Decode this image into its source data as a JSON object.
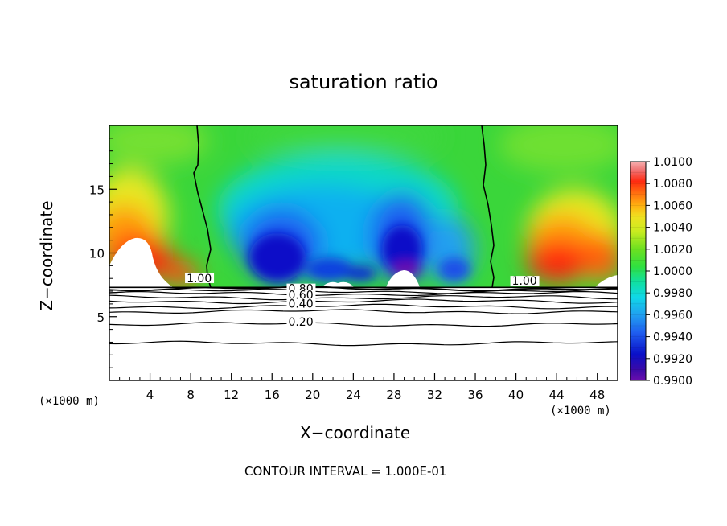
{
  "chart_data": {
    "type": "heatmap",
    "title": "saturation ratio",
    "xlabel": "X−coordinate",
    "ylabel": "Z−coordinate",
    "x_unit_left": "(×1000 m)",
    "x_unit_right": "(×1000 m)",
    "xlim": [
      0,
      50
    ],
    "ylim": [
      0,
      20
    ],
    "x_ticks": [
      4,
      8,
      12,
      16,
      20,
      24,
      28,
      32,
      36,
      40,
      44,
      48
    ],
    "y_ticks": [
      5,
      10,
      15
    ],
    "colorbar": {
      "min": 0.99,
      "max": 1.01,
      "labels": [
        "1.0100",
        "1.0080",
        "1.0060",
        "1.0040",
        "1.0020",
        "1.0000",
        "0.9980",
        "0.9960",
        "0.9940",
        "0.9920",
        "0.9900"
      ],
      "colors": {
        "low_purple": "#6a0dad",
        "blue_dark": "#0a10c8",
        "blue": "#1f5ff0",
        "cyan": "#10d8e8",
        "teal": "#10e0a0",
        "green": "#2cd62c",
        "yellow": "#eaea20",
        "orange": "#ff9a10",
        "red": "#ff2a10",
        "pink": "#f7a0a0"
      }
    },
    "boundary_z": 7.3,
    "contour_labels": [
      {
        "text": "1.00",
        "x": 7.6,
        "z": 7.7
      },
      {
        "text": "1.00",
        "x": 39.6,
        "z": 7.5
      },
      {
        "text": "0.80",
        "x": 17.6,
        "z": 6.9
      },
      {
        "text": "0.60",
        "x": 17.6,
        "z": 6.4
      },
      {
        "text": "0.40",
        "x": 17.6,
        "z": 5.7
      },
      {
        "text": "0.20",
        "x": 17.6,
        "z": 4.3
      }
    ],
    "contour_levels_z": [
      7.2,
      7.0,
      6.8,
      6.5,
      6.2,
      5.8,
      5.4,
      4.4,
      2.9
    ],
    "contour_interval_text": "CONTOUR INTERVAL = 1.000E-01"
  }
}
